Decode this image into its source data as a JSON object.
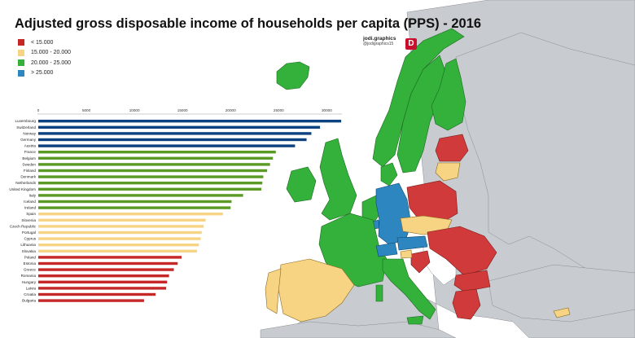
{
  "title": "Adjusted gross disposable income of households per capita (PPS) - 2016",
  "colors": {
    "red": "#c62828",
    "yellow": "#f7d483",
    "green": "#5a9a25",
    "blue": "#0d4280",
    "map_red": "#d03a3a",
    "map_yellow": "#f7d483",
    "map_green": "#33b13a",
    "map_blue": "#2d86c0",
    "map_gray": "#c8ccd0",
    "sea": "#ffffff"
  },
  "legend": [
    {
      "label": "< 15.000",
      "color": "#c62828"
    },
    {
      "label": "15.000 - 20.000",
      "color": "#f7d483"
    },
    {
      "label": "20.000 - 25.000",
      "color": "#33b13a"
    },
    {
      "label": "> 25.000",
      "color": "#2d86c0"
    }
  ],
  "brand": {
    "name": "jodi.graphics",
    "handle": "@jodigraphics15",
    "logo": "D"
  },
  "chart_data": {
    "type": "bar",
    "orientation": "horizontal",
    "title": "Adjusted gross disposable income of households per capita (PPS) - 2016",
    "xlim": [
      0,
      32000
    ],
    "ticks": [
      0,
      5000,
      10000,
      15000,
      20000,
      25000,
      30000
    ],
    "grid": false,
    "categories": [
      "Luxembourg",
      "Switzerland",
      "Norway",
      "Germany",
      "Austria",
      "France",
      "Belgium",
      "Sweden",
      "Finland",
      "Denmark",
      "Netherlands",
      "United Kingdom",
      "Italy",
      "Iceland",
      "Ireland",
      "Spain",
      "Slovenia",
      "Czech Republic",
      "Portugal",
      "Cyprus",
      "Lithuania",
      "Slovakia",
      "Poland",
      "Estonia",
      "Greece",
      "Romania",
      "Hungary",
      "Latvia",
      "Croatia",
      "Bulgaria"
    ],
    "values": [
      31500,
      29300,
      28400,
      27900,
      26700,
      24700,
      24400,
      24100,
      23800,
      23400,
      23300,
      23200,
      21300,
      20100,
      20000,
      19200,
      17400,
      17200,
      17000,
      16900,
      16700,
      16500,
      14900,
      14500,
      14100,
      13600,
      13400,
      13300,
      12200,
      11000
    ],
    "groups": [
      "blue",
      "blue",
      "blue",
      "blue",
      "blue",
      "green",
      "green",
      "green",
      "green",
      "green",
      "green",
      "green",
      "green",
      "green",
      "green",
      "yellow",
      "yellow",
      "yellow",
      "yellow",
      "yellow",
      "yellow",
      "yellow",
      "red",
      "red",
      "red",
      "red",
      "red",
      "red",
      "red",
      "red"
    ]
  }
}
